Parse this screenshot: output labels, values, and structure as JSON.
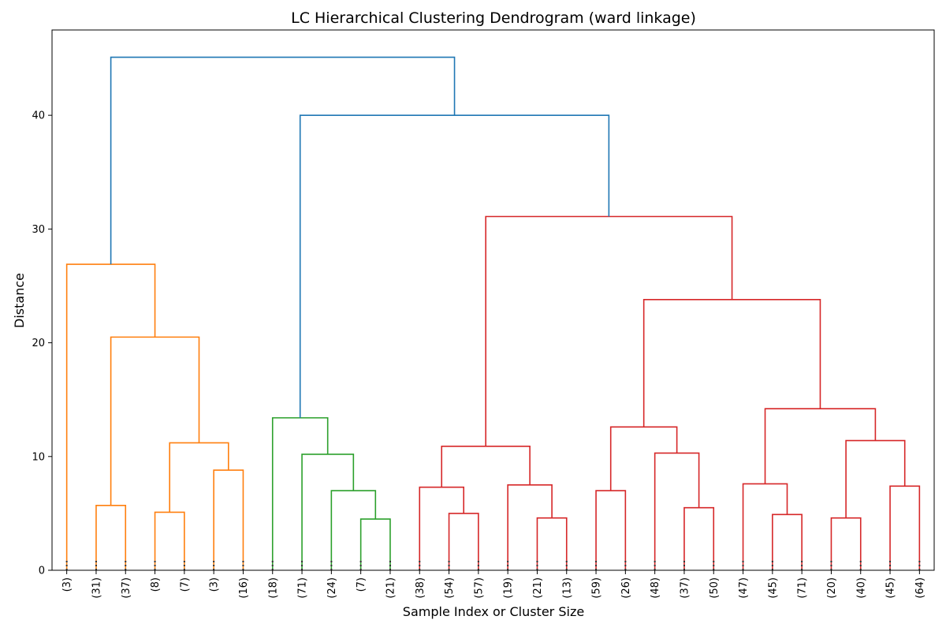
{
  "chart_data": {
    "type": "dendrogram",
    "title": "LC Hierarchical Clustering Dendrogram (ward linkage)",
    "xlabel": "Sample Index or Cluster Size",
    "ylabel": "Distance",
    "ylim": [
      0,
      47.5
    ],
    "yticks": [
      0,
      10,
      20,
      30,
      40
    ],
    "grid": false,
    "leaf_labels": [
      "(3)",
      "(31)",
      "(37)",
      "(8)",
      "(7)",
      "(3)",
      "(16)",
      "(18)",
      "(71)",
      "(24)",
      "(7)",
      "(21)",
      "(38)",
      "(54)",
      "(57)",
      "(19)",
      "(21)",
      "(13)",
      "(59)",
      "(26)",
      "(48)",
      "(37)",
      "(50)",
      "(47)",
      "(45)",
      "(71)",
      "(20)",
      "(40)",
      "(45)",
      "(64)"
    ],
    "cluster_colors": {
      "above_threshold": "#1f77b4",
      "C1": "#ff7f0e",
      "C2": "#2ca02c",
      "C3": "#d62728"
    },
    "merges": [
      {
        "left": 1,
        "right": 2,
        "height": 5.7,
        "color": "C1"
      },
      {
        "left": 3,
        "right": 4,
        "height": 5.1,
        "color": "C1"
      },
      {
        "left": 5,
        "right": 6,
        "height": 8.8,
        "color": "C1"
      },
      {
        "left": "m2",
        "right": "m3",
        "height": 11.2,
        "color": "C1"
      },
      {
        "left": "m1",
        "right": "m4",
        "height": 20.5,
        "color": "C1"
      },
      {
        "left": 0,
        "right": "m5",
        "height": 26.9,
        "color": "C1"
      },
      {
        "left": 10,
        "right": 11,
        "height": 4.5,
        "color": "C2"
      },
      {
        "left": 9,
        "right": "m7",
        "height": 7.0,
        "color": "C2"
      },
      {
        "left": 8,
        "right": "m8",
        "height": 10.2,
        "color": "C2"
      },
      {
        "left": 7,
        "right": "m9",
        "height": 13.4,
        "color": "C2"
      },
      {
        "left": 13,
        "right": 14,
        "height": 5.0,
        "color": "C3"
      },
      {
        "left": 12,
        "right": "m11",
        "height": 7.3,
        "color": "C3"
      },
      {
        "left": 16,
        "right": 17,
        "height": 4.6,
        "color": "C3"
      },
      {
        "left": 15,
        "right": "m13",
        "height": 7.5,
        "color": "C3"
      },
      {
        "left": "m12",
        "right": "m14",
        "height": 10.9,
        "color": "C3"
      },
      {
        "left": 18,
        "right": 19,
        "height": 7.0,
        "color": "C3"
      },
      {
        "left": 21,
        "right": 22,
        "height": 5.5,
        "color": "C3"
      },
      {
        "left": 20,
        "right": "m17",
        "height": 10.3,
        "color": "C3"
      },
      {
        "left": "m16",
        "right": "m18",
        "height": 12.6,
        "color": "C3"
      },
      {
        "left": 24,
        "right": 25,
        "height": 4.9,
        "color": "C3"
      },
      {
        "left": 23,
        "right": "m20",
        "height": 7.6,
        "color": "C3"
      },
      {
        "left": 26,
        "right": 27,
        "height": 4.6,
        "color": "C3"
      },
      {
        "left": 28,
        "right": 29,
        "height": 7.4,
        "color": "C3"
      },
      {
        "left": "m22",
        "right": "m23",
        "height": 11.4,
        "color": "C3"
      },
      {
        "left": "m21",
        "right": "m24",
        "height": 14.2,
        "color": "C3"
      },
      {
        "left": "m19",
        "right": "m25",
        "height": 23.8,
        "color": "C3"
      },
      {
        "left": "m15",
        "right": "m26",
        "height": 31.1,
        "color": "C3"
      },
      {
        "left": "m10",
        "right": "m27",
        "height": 40.0,
        "color": "above_threshold"
      },
      {
        "left": "m6",
        "right": "m28",
        "height": 45.1,
        "color": "above_threshold"
      }
    ]
  }
}
